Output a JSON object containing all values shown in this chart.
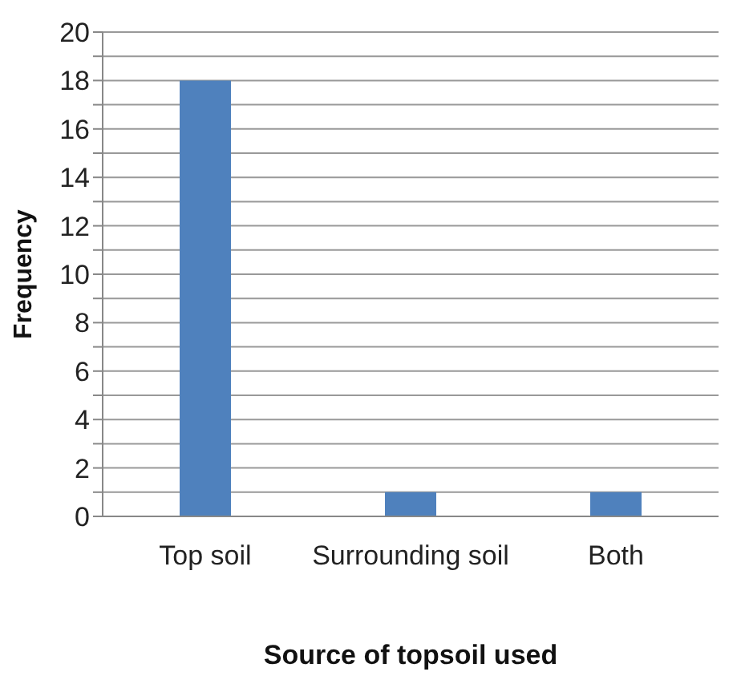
{
  "chart_data": {
    "type": "bar",
    "xlabel": "Source of topsoil used",
    "ylabel": "Frequency",
    "categories": [
      "Top soil",
      "Surrounding soil",
      "Both"
    ],
    "values": [
      18,
      1,
      1
    ],
    "color": "#4f81bd",
    "ylim": [
      0,
      20
    ],
    "yticks": [
      0,
      {
        "value": 1,
        "label": null
      },
      2,
      {
        "value": 3,
        "label": null
      },
      4,
      {
        "value": 5,
        "label": null
      },
      6,
      {
        "value": 7,
        "label": null
      },
      8,
      {
        "value": 9,
        "label": null
      },
      10,
      {
        "value": 11,
        "label": null
      },
      12,
      {
        "value": 13,
        "label": null
      },
      14,
      {
        "value": 15,
        "label": null
      },
      16,
      {
        "value": 17,
        "label": null
      },
      18,
      {
        "value": 19,
        "label": null
      },
      20
    ],
    "grid": "y"
  }
}
